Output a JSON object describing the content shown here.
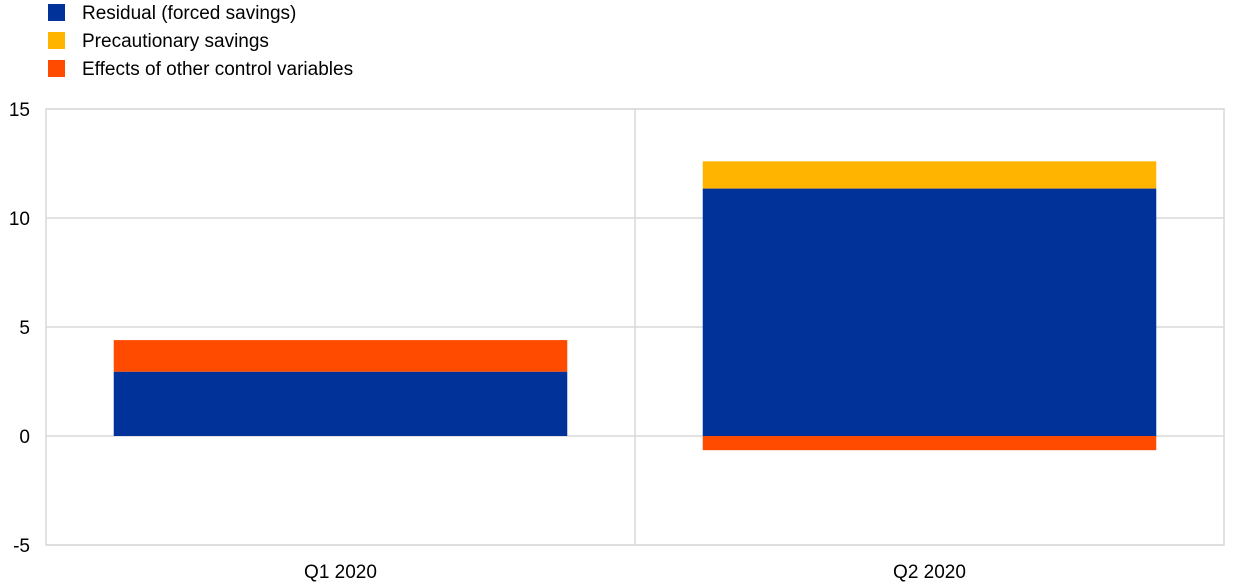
{
  "chart_data": {
    "type": "bar",
    "stacked": true,
    "title": "",
    "xlabel": "",
    "ylabel": "",
    "categories": [
      "Q1 2020",
      "Q2 2020"
    ],
    "ylim": [
      -5,
      15
    ],
    "yticks": [
      15,
      10,
      5,
      0,
      -5
    ],
    "grid": true,
    "legend_position": "top-left",
    "series": [
      {
        "name": "Residual (forced savings)",
        "color": "#003299",
        "values": [
          2.95,
          11.35
        ]
      },
      {
        "name": "Precautionary savings",
        "color": "#ffb400",
        "values": [
          0,
          1.25
        ]
      },
      {
        "name": "Effects of other control variables",
        "color": "#ff4b00",
        "values": [
          1.45,
          -0.65
        ]
      }
    ]
  }
}
